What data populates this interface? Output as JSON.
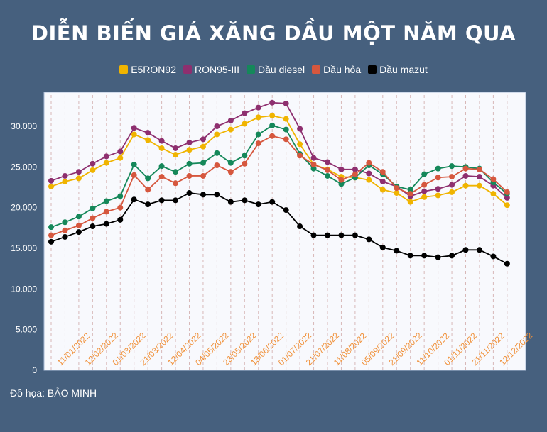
{
  "chart_data": {
    "type": "line",
    "title": "DIỄN BIẾN GIÁ XĂNG DẦU MỘT NĂM QUA",
    "legend_position": "top",
    "grid": "vertical dashed",
    "ylim": [
      0,
      33000
    ],
    "yticks": [
      "0",
      "5.000",
      "10.000",
      "15.000",
      "20.000",
      "25.000",
      "30.000"
    ],
    "ytick_values": [
      0,
      5000,
      10000,
      15000,
      20000,
      25000,
      30000
    ],
    "x_tick_labels": [
      "11/01/2022",
      "12/02/2022",
      "01/03/2022",
      "21/03/2022",
      "12/04/2022",
      "04/05/2022",
      "23/05/2022",
      "13/06/2022",
      "01/07/2022",
      "21/07/2022",
      "11/08/2022",
      "05/09/2022",
      "21/09/2022",
      "11/10/2022",
      "01/11/2022",
      "21/11/2022",
      "12/12/2022"
    ],
    "series": [
      {
        "name": "E5RON92",
        "color": "#f0b400",
        "values": [
          22600,
          23200,
          23600,
          24600,
          25500,
          26100,
          29000,
          28300,
          27300,
          26500,
          27100,
          27500,
          29000,
          29600,
          30300,
          31100,
          31300,
          30900,
          27800,
          25300,
          24700,
          23800,
          23700,
          23400,
          22200,
          21800,
          20700,
          21300,
          21500,
          21900,
          22700,
          22700,
          21700,
          20300
        ]
      },
      {
        "name": "RON95-III",
        "color": "#8e2f6f",
        "values": [
          23300,
          23900,
          24400,
          25400,
          26300,
          26900,
          29800,
          29200,
          28200,
          27300,
          28000,
          28400,
          30000,
          30700,
          31600,
          32300,
          32900,
          32800,
          29700,
          26100,
          25600,
          24700,
          24700,
          24200,
          23200,
          22600,
          21400,
          22000,
          22300,
          22800,
          23900,
          23800,
          22700,
          21200
        ]
      },
      {
        "name": "Dầu diesel",
        "color": "#15885a",
        "values": [
          17600,
          18200,
          18900,
          19900,
          20800,
          21400,
          25300,
          23600,
          25100,
          24400,
          25400,
          25500,
          26700,
          25500,
          26400,
          29000,
          30100,
          29600,
          26600,
          24800,
          23900,
          22900,
          23700,
          25200,
          24100,
          22600,
          22200,
          24100,
          24800,
          25100,
          25000,
          24800,
          23100,
          21700
        ]
      },
      {
        "name": "Dầu hỏa",
        "color": "#d6573e",
        "values": [
          16600,
          17200,
          17800,
          18700,
          19500,
          20000,
          24000,
          22200,
          23800,
          23000,
          23900,
          23900,
          25200,
          24400,
          25400,
          27900,
          28800,
          28400,
          26400,
          25300,
          24600,
          23400,
          24100,
          25500,
          24400,
          22400,
          21700,
          22800,
          23700,
          23800,
          24800,
          24700,
          23500,
          21900
        ]
      },
      {
        "name": "Dầu mazut",
        "color": "#000000",
        "values": [
          15800,
          16400,
          17000,
          17700,
          18000,
          18500,
          21000,
          20400,
          20900,
          20900,
          21800,
          21600,
          21600,
          20700,
          20900,
          20400,
          20700,
          19700,
          17700,
          16600,
          16600,
          16600,
          16600,
          16100,
          15100,
          14700,
          14100,
          14100,
          13900,
          14100,
          14800,
          14800,
          14000,
          13100
        ]
      }
    ]
  },
  "credit": "Đồ họa: BẢO MINH"
}
